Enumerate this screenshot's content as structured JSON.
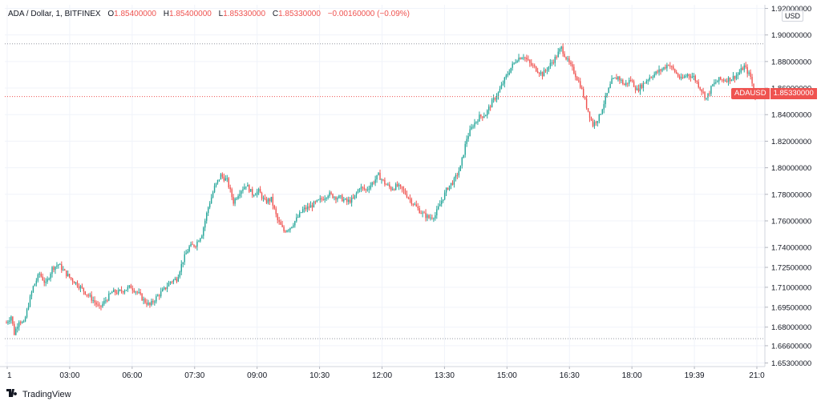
{
  "legend": {
    "symbol": "ADA / Dollar, 1, BITFINEX",
    "open_label": "O",
    "open": "1.85400000",
    "high_label": "H",
    "high": "1.85400000",
    "low_label": "L",
    "low": "1.85330000",
    "close_label": "C",
    "close": "1.85330000",
    "change": "−0.00160000 (−0.09%)"
  },
  "currency_unit": "USD",
  "last_price": {
    "symbol": "ADAUSD",
    "value": "1.85330000"
  },
  "brand": "TradingView",
  "colors": {
    "up": "#26a69a",
    "down": "#ef5350",
    "grid": "#f0f3fa",
    "text": "#131722"
  },
  "chart_data": {
    "type": "candlestick",
    "y_ticks": [
      "1.92000000",
      "1.90000000",
      "1.88000000",
      "1.86000000",
      "1.84000000",
      "1.82000000",
      "1.80000000",
      "1.78000000",
      "1.76000000",
      "1.74000000",
      "1.72500000",
      "1.71000000",
      "1.69500000",
      "1.68000000",
      "1.66600000",
      "1.65300000"
    ],
    "x_ticks": [
      "1",
      "03:00",
      "06:00",
      "07:30",
      "09:00",
      "10:30",
      "12:00",
      "13:30",
      "15:00",
      "16:30",
      "18:00",
      "19:39",
      "21:0"
    ],
    "ylim": [
      1.653,
      1.92
    ],
    "high_line": 1.893,
    "low_line": 1.671,
    "price_keypoints": [
      [
        0,
        1.683
      ],
      [
        3,
        1.688
      ],
      [
        5,
        1.675
      ],
      [
        8,
        1.685
      ],
      [
        11,
        1.682
      ],
      [
        14,
        1.697
      ],
      [
        17,
        1.71
      ],
      [
        21,
        1.72
      ],
      [
        25,
        1.712
      ],
      [
        29,
        1.724
      ],
      [
        33,
        1.727
      ],
      [
        37,
        1.721
      ],
      [
        41,
        1.716
      ],
      [
        45,
        1.712
      ],
      [
        50,
        1.706
      ],
      [
        55,
        1.7
      ],
      [
        59,
        1.694
      ],
      [
        63,
        1.7
      ],
      [
        67,
        1.706
      ],
      [
        71,
        1.706
      ],
      [
        75,
        1.708
      ],
      [
        79,
        1.71
      ],
      [
        83,
        1.706
      ],
      [
        87,
        1.7
      ],
      [
        91,
        1.696
      ],
      [
        95,
        1.702
      ],
      [
        100,
        1.708
      ],
      [
        104,
        1.714
      ],
      [
        108,
        1.716
      ],
      [
        112,
        1.73
      ],
      [
        116,
        1.74
      ],
      [
        120,
        1.742
      ],
      [
        124,
        1.75
      ],
      [
        128,
        1.77
      ],
      [
        132,
        1.785
      ],
      [
        136,
        1.794
      ],
      [
        140,
        1.79
      ],
      [
        144,
        1.774
      ],
      [
        148,
        1.782
      ],
      [
        152,
        1.787
      ],
      [
        156,
        1.78
      ],
      [
        160,
        1.782
      ],
      [
        164,
        1.774
      ],
      [
        168,
        1.776
      ],
      [
        172,
        1.76
      ],
      [
        176,
        1.752
      ],
      [
        180,
        1.755
      ],
      [
        184,
        1.761
      ],
      [
        188,
        1.768
      ],
      [
        192,
        1.77
      ],
      [
        196,
        1.773
      ],
      [
        200,
        1.776
      ],
      [
        204,
        1.78
      ],
      [
        208,
        1.778
      ],
      [
        212,
        1.777
      ],
      [
        216,
        1.774
      ],
      [
        220,
        1.776
      ],
      [
        224,
        1.785
      ],
      [
        228,
        1.783
      ],
      [
        232,
        1.788
      ],
      [
        236,
        1.794
      ],
      [
        240,
        1.788
      ],
      [
        244,
        1.784
      ],
      [
        248,
        1.786
      ],
      [
        252,
        1.782
      ],
      [
        256,
        1.776
      ],
      [
        260,
        1.77
      ],
      [
        264,
        1.765
      ],
      [
        268,
        1.762
      ],
      [
        272,
        1.764
      ],
      [
        276,
        1.775
      ],
      [
        280,
        1.785
      ],
      [
        284,
        1.79
      ],
      [
        288,
        1.8
      ],
      [
        292,
        1.822
      ],
      [
        296,
        1.832
      ],
      [
        300,
        1.838
      ],
      [
        304,
        1.84
      ],
      [
        308,
        1.849
      ],
      [
        312,
        1.856
      ],
      [
        316,
        1.866
      ],
      [
        320,
        1.875
      ],
      [
        324,
        1.882
      ],
      [
        328,
        1.884
      ],
      [
        332,
        1.878
      ],
      [
        336,
        1.874
      ],
      [
        340,
        1.87
      ],
      [
        344,
        1.876
      ],
      [
        348,
        1.882
      ],
      [
        352,
        1.89
      ],
      [
        356,
        1.88
      ],
      [
        360,
        1.872
      ],
      [
        364,
        1.862
      ],
      [
        368,
        1.846
      ],
      [
        372,
        1.832
      ],
      [
        376,
        1.838
      ],
      [
        380,
        1.852
      ],
      [
        384,
        1.865
      ],
      [
        388,
        1.868
      ],
      [
        392,
        1.862
      ],
      [
        396,
        1.866
      ],
      [
        400,
        1.858
      ],
      [
        404,
        1.863
      ],
      [
        408,
        1.868
      ],
      [
        412,
        1.871
      ],
      [
        416,
        1.874
      ],
      [
        420,
        1.878
      ],
      [
        424,
        1.872
      ],
      [
        428,
        1.866
      ],
      [
        432,
        1.87
      ],
      [
        436,
        1.868
      ],
      [
        440,
        1.86
      ],
      [
        444,
        1.852
      ],
      [
        448,
        1.862
      ],
      [
        452,
        1.866
      ],
      [
        456,
        1.866
      ],
      [
        460,
        1.867
      ],
      [
        464,
        1.87
      ],
      [
        468,
        1.876
      ],
      [
        472,
        1.868
      ],
      [
        475,
        1.853
      ]
    ],
    "grid": true,
    "legend_position": "top-left"
  }
}
